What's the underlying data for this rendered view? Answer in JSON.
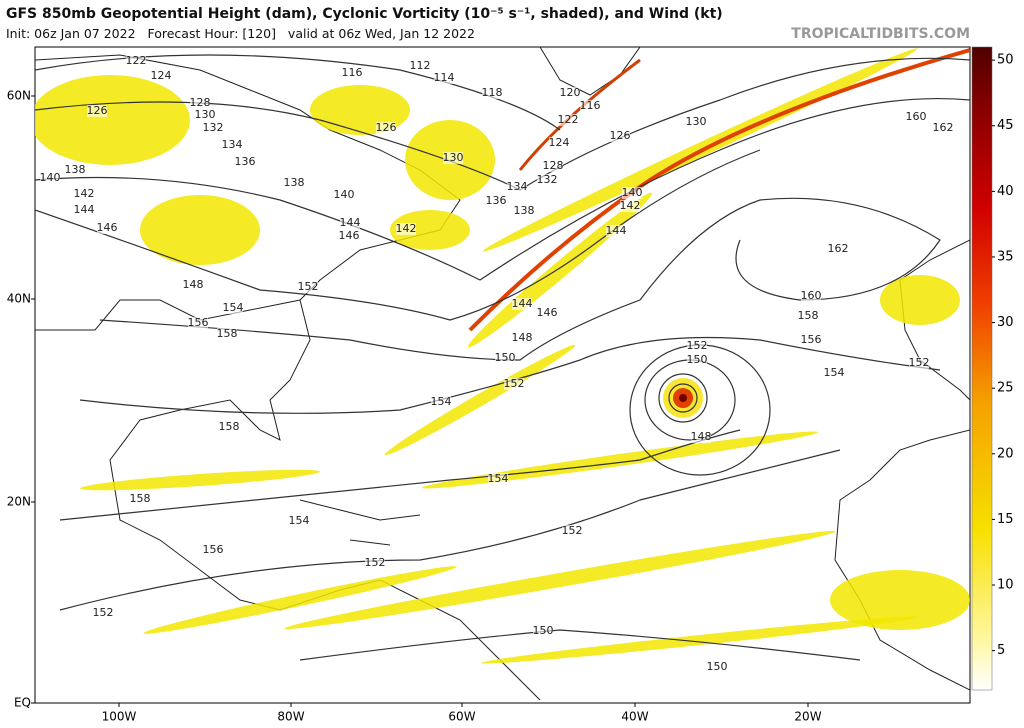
{
  "header": {
    "title": "GFS 850mb Geopotential Height (dam), Cyclonic Vorticity (10⁻⁵ s⁻¹, shaded), and Wind (kt)",
    "subtitle": "Init: 06z Jan 07 2022   Forecast Hour: [120]   valid at 06z Wed, Jan 12 2022",
    "source": "TROPICALTIDBITS.COM"
  },
  "map": {
    "lat_labels": [
      "60N",
      "40N",
      "20N",
      "EQ"
    ],
    "lon_labels": [
      "100W",
      "80W",
      "60W",
      "40W",
      "20W"
    ],
    "contour_labels": [
      122,
      124,
      126,
      128,
      130,
      132,
      134,
      136,
      138,
      140,
      142,
      144,
      146,
      148,
      152,
      154,
      156,
      158,
      116,
      112,
      114,
      118,
      126,
      130,
      134,
      136,
      138,
      140,
      142,
      144,
      144,
      146,
      148,
      150,
      152,
      154,
      158,
      154,
      152,
      154,
      152,
      156,
      158,
      152,
      150,
      150,
      148,
      150,
      152,
      154,
      152,
      156,
      158,
      160,
      162,
      130,
      126,
      120,
      116,
      122,
      124,
      128,
      132,
      160,
      162,
      140,
      142,
      144,
      146,
      138
    ]
  },
  "colorbar": {
    "lim": [
      2,
      51
    ],
    "ticks": [
      5,
      10,
      15,
      20,
      25,
      30,
      35,
      40,
      45,
      50
    ]
  }
}
